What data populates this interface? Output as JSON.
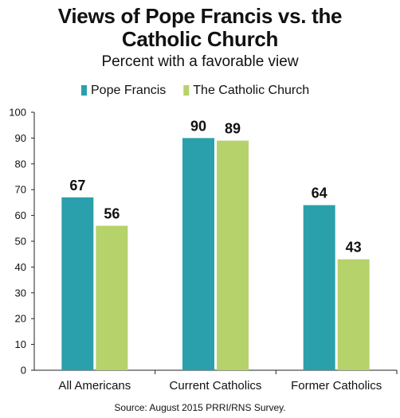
{
  "title_line1": "Views of Pope Francis vs. the",
  "title_line2": "Catholic Church",
  "subtitle": "Percent with a favorable view",
  "source": "Source: August 2015 PRRI/RNS Survey.",
  "chart_data": {
    "type": "bar",
    "title": "Views of Pope Francis vs. the Catholic Church",
    "subtitle": "Percent with a favorable view",
    "categories": [
      "All Americans",
      "Current Catholics",
      "Former Catholics"
    ],
    "series": [
      {
        "name": "Pope Francis",
        "color": "#2aa0ac",
        "values": [
          67,
          90,
          64
        ]
      },
      {
        "name": "The Catholic Church",
        "color": "#b6d26a",
        "values": [
          56,
          89,
          43
        ]
      }
    ],
    "ylim": [
      0,
      100
    ],
    "yticks": [
      0,
      10,
      20,
      30,
      40,
      50,
      60,
      70,
      80,
      90,
      100
    ],
    "xlabel": "",
    "ylabel": "",
    "grid": false,
    "legend": "top",
    "data_labels": true
  }
}
